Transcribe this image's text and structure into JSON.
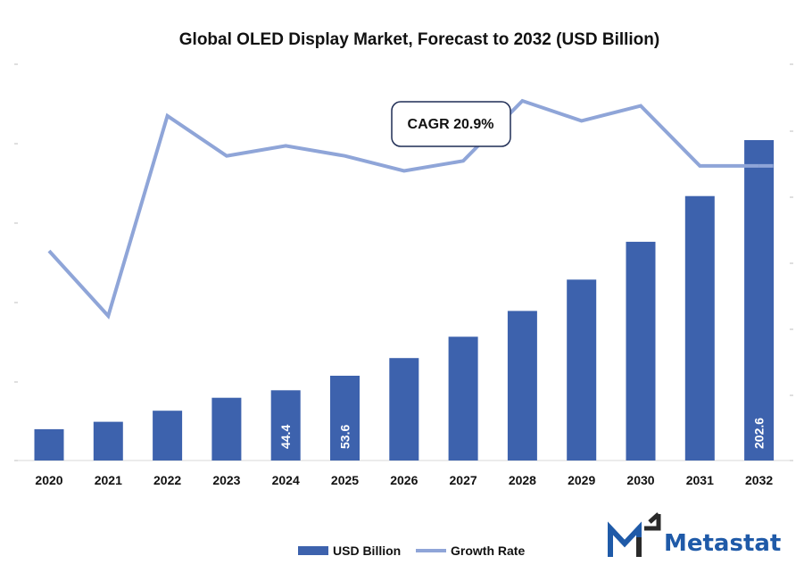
{
  "chart_data": {
    "type": "bar",
    "title": "Global OLED Display Market, Forecast to 2032 (USD Billion)",
    "categories": [
      "2020",
      "2021",
      "2022",
      "2023",
      "2024",
      "2025",
      "2026",
      "2027",
      "2028",
      "2029",
      "2030",
      "2031",
      "2032"
    ],
    "series": [
      {
        "name": "USD Billion",
        "type": "bar",
        "color": "#3d62ad",
        "values": [
          19.8,
          24.5,
          31.5,
          39.7,
          44.4,
          53.6,
          64.8,
          78.3,
          94.6,
          114.4,
          138.3,
          167.2,
          202.6
        ],
        "data_labels": [
          "",
          "",
          "",
          "",
          "44.4",
          "53.6",
          "",
          "",
          "",
          "",
          "",
          "",
          "202.6"
        ]
      },
      {
        "name": "Growth Rate",
        "type": "line",
        "color": "#8fa5d8",
        "values": [
          20.5,
          19.2,
          23.2,
          22.4,
          22.6,
          22.4,
          22.1,
          22.3,
          23.5,
          23.1,
          23.4,
          22.2,
          22.2
        ]
      }
    ],
    "ylim": [
      0,
      202.6
    ],
    "y2lim": [
      18.0,
      23.5
    ],
    "legend_position": "bottom",
    "grid": false
  },
  "annotation": {
    "cagr": "CAGR 20.9%"
  },
  "brand": {
    "name": "Metastat"
  }
}
